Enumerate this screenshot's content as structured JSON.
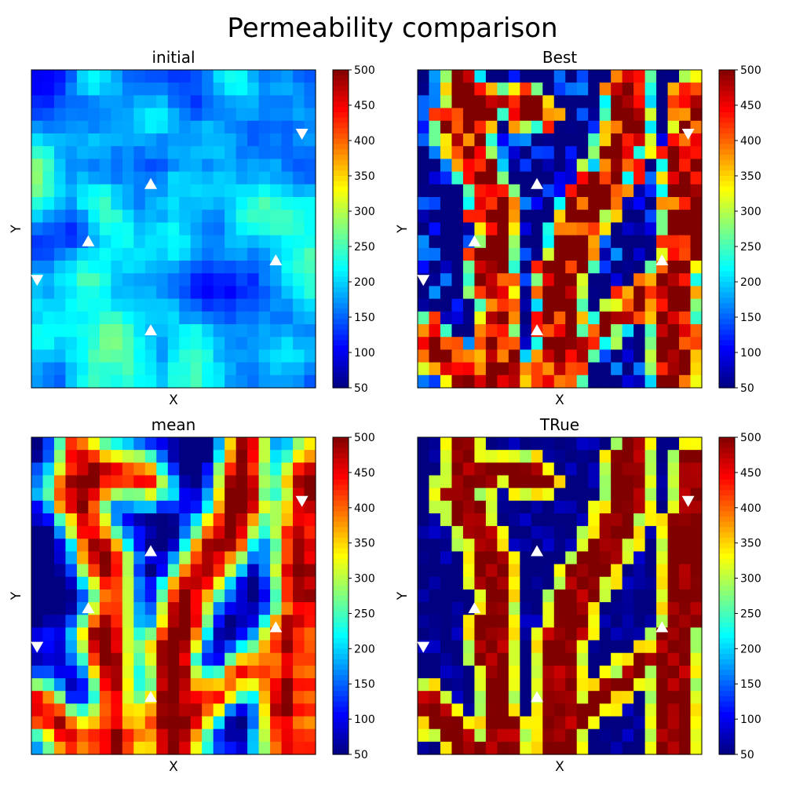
{
  "title": "Permeability comparison",
  "colormap": "jet",
  "colorbar": {
    "min": 50,
    "max": 500,
    "ticks": [
      50,
      100,
      150,
      200,
      250,
      300,
      350,
      400,
      450,
      500
    ]
  },
  "chart_data": [
    {
      "type": "heatmap",
      "title": "initial",
      "xlabel": "X",
      "ylabel": "Y",
      "grid_size": [
        25,
        25
      ],
      "value_range": [
        50,
        500
      ],
      "wells_producer": [
        [
          10.5,
          20.5
        ],
        [
          5.0,
          13.5
        ],
        [
          10.5,
          9.0
        ],
        [
          21.5,
          15.0
        ]
      ],
      "wells_injector": [
        [
          0.5,
          16.5
        ],
        [
          23.8,
          5.0
        ],
        [
          0.3,
          25.5
        ]
      ]
    },
    {
      "type": "heatmap",
      "title": "Best",
      "xlabel": "X",
      "ylabel": "Y",
      "grid_size": [
        25,
        25
      ],
      "value_range": [
        50,
        500
      ],
      "wells_producer": [
        [
          10.5,
          20.5
        ],
        [
          5.0,
          13.5
        ],
        [
          10.5,
          9.0
        ],
        [
          21.5,
          15.0
        ]
      ],
      "wells_injector": [
        [
          0.5,
          16.5
        ],
        [
          23.8,
          5.0
        ],
        [
          0.3,
          25.5
        ]
      ]
    },
    {
      "type": "heatmap",
      "title": "mean",
      "xlabel": "X",
      "ylabel": "Y",
      "grid_size": [
        25,
        25
      ],
      "value_range": [
        50,
        500
      ],
      "wells_producer": [
        [
          10.5,
          20.5
        ],
        [
          5.0,
          13.5
        ],
        [
          10.5,
          9.0
        ],
        [
          21.5,
          15.0
        ]
      ],
      "wells_injector": [
        [
          0.5,
          16.5
        ],
        [
          23.8,
          5.0
        ],
        [
          0.3,
          25.5
        ]
      ]
    },
    {
      "type": "heatmap",
      "title": "TRue",
      "xlabel": "X",
      "ylabel": "Y",
      "grid_size": [
        25,
        25
      ],
      "value_range": [
        50,
        500
      ],
      "wells_producer": [
        [
          10.5,
          20.5
        ],
        [
          5.0,
          13.5
        ],
        [
          10.5,
          9.0
        ],
        [
          21.5,
          15.0
        ]
      ],
      "wells_injector": [
        [
          0.5,
          16.5
        ],
        [
          23.8,
          5.0
        ],
        [
          0.3,
          25.5
        ]
      ]
    }
  ]
}
